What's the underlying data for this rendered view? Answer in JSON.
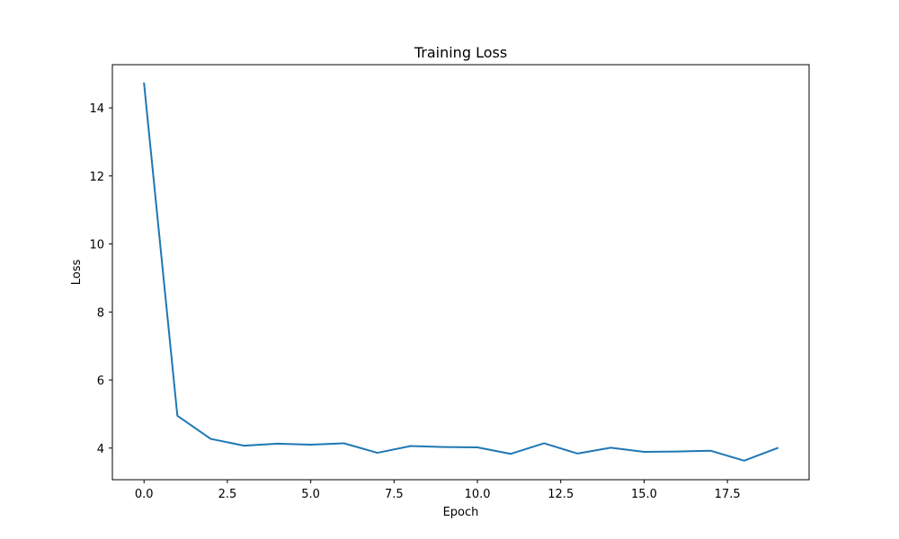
{
  "chart_data": {
    "type": "line",
    "title": "Training Loss",
    "xlabel": "Epoch",
    "ylabel": "Loss",
    "xlim": [
      -0.95,
      19.95
    ],
    "ylim": [
      3.07,
      15.27
    ],
    "x_ticks": [
      0.0,
      2.5,
      5.0,
      7.5,
      10.0,
      12.5,
      15.0,
      17.5
    ],
    "x_tick_labels": [
      "0.0",
      "2.5",
      "5.0",
      "7.5",
      "10.0",
      "12.5",
      "15.0",
      "17.5"
    ],
    "y_ticks": [
      4,
      6,
      8,
      10,
      12,
      14
    ],
    "y_tick_labels": [
      "4",
      "6",
      "8",
      "10",
      "12",
      "14"
    ],
    "grid": false,
    "series": [
      {
        "color": "#1f77b4",
        "x": [
          0,
          1,
          2,
          3,
          4,
          5,
          6,
          7,
          8,
          9,
          10,
          11,
          12,
          13,
          14,
          15,
          16,
          17,
          18,
          19
        ],
        "y": [
          14.72,
          4.95,
          4.27,
          4.07,
          4.13,
          4.1,
          4.14,
          3.86,
          4.06,
          4.03,
          4.02,
          3.83,
          4.14,
          3.84,
          4.01,
          3.89,
          3.9,
          3.92,
          3.63,
          4.0
        ]
      }
    ]
  }
}
